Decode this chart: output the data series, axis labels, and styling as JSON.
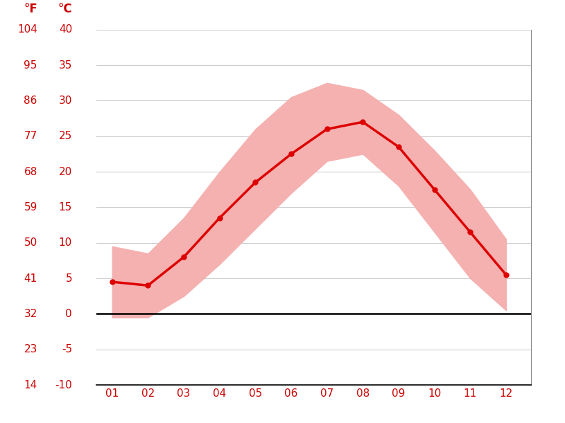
{
  "months": [
    1,
    2,
    3,
    4,
    5,
    6,
    7,
    8,
    9,
    10,
    11,
    12
  ],
  "month_labels": [
    "01",
    "02",
    "03",
    "04",
    "05",
    "06",
    "07",
    "08",
    "09",
    "10",
    "11",
    "12"
  ],
  "mean_temp": [
    4.5,
    4.0,
    8.0,
    13.5,
    18.5,
    22.5,
    26.0,
    27.0,
    23.5,
    17.5,
    11.5,
    5.5
  ],
  "max_temp": [
    9.5,
    8.5,
    13.5,
    20.0,
    26.0,
    30.5,
    32.5,
    31.5,
    28.0,
    23.0,
    17.5,
    10.5
  ],
  "min_temp": [
    -0.5,
    -0.5,
    2.5,
    7.0,
    12.0,
    17.0,
    21.5,
    22.5,
    18.0,
    11.5,
    5.0,
    0.5
  ],
  "ylim": [
    -10,
    40
  ],
  "xlim_left": 0.55,
  "xlim_right": 12.7,
  "yticks_c": [
    -10,
    -5,
    0,
    5,
    10,
    15,
    20,
    25,
    30,
    35,
    40
  ],
  "yticks_f": [
    14,
    23,
    32,
    41,
    50,
    59,
    68,
    77,
    86,
    95,
    104
  ],
  "ylabel_c": "°C",
  "ylabel_f": "°F",
  "line_color": "#dd0000",
  "band_color": "#f5b0b0",
  "zero_line_color": "#000000",
  "grid_color": "#cccccc",
  "tick_label_color": "#cc0000",
  "background_color": "#ffffff",
  "figsize": [
    8.15,
    6.11
  ],
  "dpi": 100
}
